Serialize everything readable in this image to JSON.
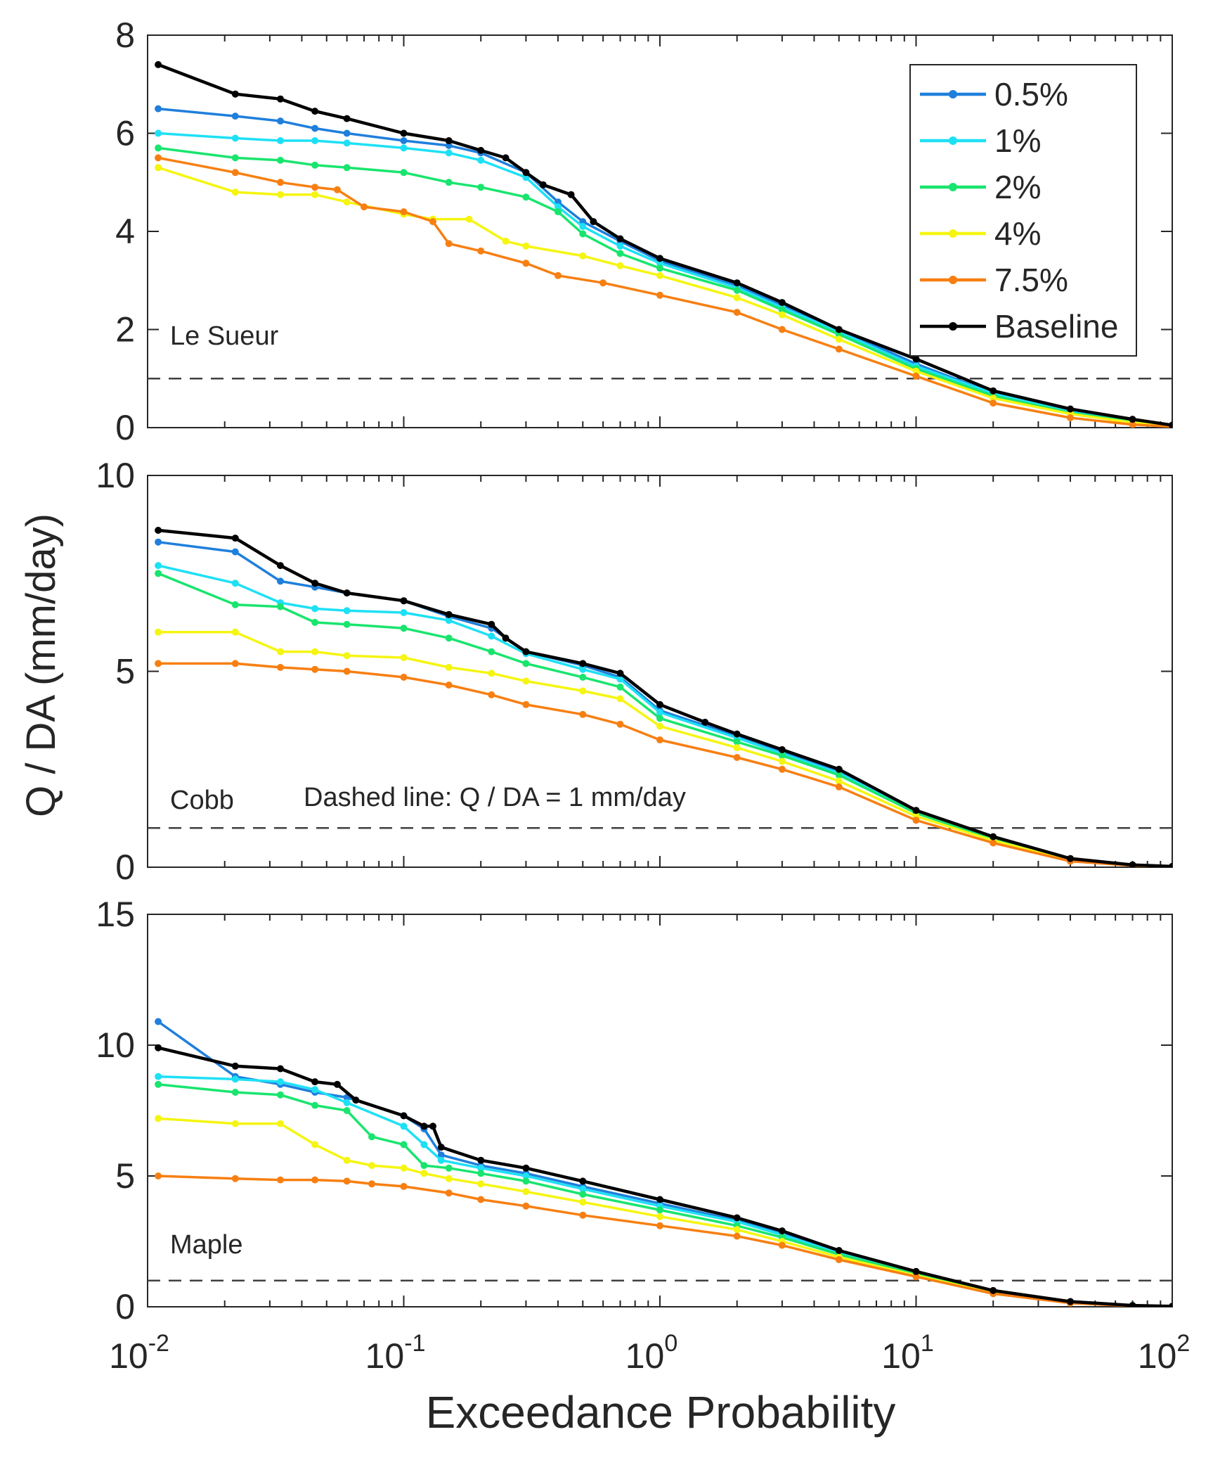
{
  "figure": {
    "ylabel": "Q / DA (mm/day)",
    "xlabel": "Exceedance Probability",
    "note": "Dashed line: Q / DA = 1 mm/day",
    "x_ticks": [
      {
        "value": 0.01,
        "base": "10",
        "exp": "-2"
      },
      {
        "value": 0.1,
        "base": "10",
        "exp": "-1"
      },
      {
        "value": 1,
        "base": "10",
        "exp": "0"
      },
      {
        "value": 10,
        "base": "10",
        "exp": "1"
      },
      {
        "value": 100,
        "base": "10",
        "exp": "2"
      }
    ],
    "legend": {
      "placement": "top-right (top panel)",
      "entries": [
        {
          "label": "0.5%",
          "color": "#1f7fdc"
        },
        {
          "label": "1%",
          "color": "#1ee0f5"
        },
        {
          "label": "2%",
          "color": "#19e56e"
        },
        {
          "label": "4%",
          "color": "#f5f511"
        },
        {
          "label": "7.5%",
          "color": "#f77f12"
        },
        {
          "label": "Baseline",
          "color": "#000000"
        }
      ]
    }
  },
  "chart_data": [
    {
      "type": "line",
      "panel_label": "Le Sueur",
      "x_scale": "log",
      "xlim": [
        0.01,
        100
      ],
      "ylim": [
        0,
        8
      ],
      "yticks": [
        0,
        2,
        4,
        6,
        8
      ],
      "reference_line_y": 1,
      "series": [
        {
          "name": "0.5%",
          "x": [
            0.011,
            0.022,
            0.033,
            0.045,
            0.06,
            0.1,
            0.15,
            0.2,
            0.3,
            0.4,
            0.5,
            0.7,
            1,
            2,
            3,
            5,
            10,
            20,
            40,
            70,
            100
          ],
          "y": [
            6.5,
            6.35,
            6.25,
            6.1,
            6.0,
            5.85,
            5.75,
            5.6,
            5.2,
            4.6,
            4.2,
            3.8,
            3.4,
            2.9,
            2.5,
            2.0,
            1.3,
            0.7,
            0.35,
            0.15,
            0.05
          ]
        },
        {
          "name": "1%",
          "x": [
            0.011,
            0.022,
            0.033,
            0.045,
            0.06,
            0.1,
            0.15,
            0.2,
            0.3,
            0.4,
            0.5,
            0.7,
            1,
            2,
            3,
            5,
            10,
            20,
            40,
            70,
            100
          ],
          "y": [
            6.0,
            5.9,
            5.85,
            5.85,
            5.8,
            5.7,
            5.6,
            5.45,
            5.1,
            4.5,
            4.1,
            3.7,
            3.35,
            2.85,
            2.45,
            1.95,
            1.25,
            0.7,
            0.35,
            0.15,
            0.05
          ]
        },
        {
          "name": "2%",
          "x": [
            0.011,
            0.022,
            0.033,
            0.045,
            0.06,
            0.1,
            0.15,
            0.2,
            0.3,
            0.4,
            0.5,
            0.7,
            1,
            2,
            3,
            5,
            10,
            20,
            40,
            70,
            100
          ],
          "y": [
            5.7,
            5.5,
            5.45,
            5.35,
            5.3,
            5.2,
            5.0,
            4.9,
            4.7,
            4.4,
            3.95,
            3.55,
            3.25,
            2.8,
            2.4,
            1.9,
            1.2,
            0.65,
            0.3,
            0.12,
            0.04
          ]
        },
        {
          "name": "4%",
          "x": [
            0.011,
            0.022,
            0.033,
            0.045,
            0.06,
            0.1,
            0.13,
            0.18,
            0.25,
            0.3,
            0.5,
            0.7,
            1,
            2,
            3,
            5,
            10,
            20,
            40,
            70,
            100
          ],
          "y": [
            5.3,
            4.8,
            4.75,
            4.75,
            4.6,
            4.35,
            4.25,
            4.25,
            3.8,
            3.7,
            3.5,
            3.3,
            3.1,
            2.65,
            2.3,
            1.8,
            1.15,
            0.6,
            0.28,
            0.1,
            0.03
          ]
        },
        {
          "name": "7.5%",
          "x": [
            0.011,
            0.022,
            0.033,
            0.045,
            0.055,
            0.07,
            0.1,
            0.13,
            0.15,
            0.2,
            0.3,
            0.4,
            0.6,
            1,
            2,
            3,
            5,
            10,
            20,
            40,
            70,
            100
          ],
          "y": [
            5.5,
            5.2,
            5.0,
            4.9,
            4.85,
            4.5,
            4.4,
            4.2,
            3.75,
            3.6,
            3.35,
            3.1,
            2.95,
            2.7,
            2.35,
            2.0,
            1.6,
            1.05,
            0.5,
            0.2,
            0.06,
            0.02
          ]
        },
        {
          "name": "Baseline",
          "x": [
            0.011,
            0.022,
            0.033,
            0.045,
            0.06,
            0.1,
            0.15,
            0.2,
            0.25,
            0.3,
            0.35,
            0.45,
            0.55,
            0.7,
            1,
            2,
            3,
            5,
            10,
            20,
            40,
            70,
            100
          ],
          "y": [
            7.4,
            6.8,
            6.7,
            6.45,
            6.3,
            6.0,
            5.85,
            5.65,
            5.5,
            5.2,
            4.95,
            4.75,
            4.2,
            3.85,
            3.45,
            2.95,
            2.55,
            2.0,
            1.4,
            0.75,
            0.38,
            0.17,
            0.05
          ]
        }
      ]
    },
    {
      "type": "line",
      "panel_label": "Cobb",
      "x_scale": "log",
      "xlim": [
        0.01,
        100
      ],
      "ylim": [
        0,
        10
      ],
      "yticks": [
        0,
        5,
        10
      ],
      "reference_line_y": 1,
      "series": [
        {
          "name": "0.5%",
          "x": [
            0.011,
            0.022,
            0.033,
            0.045,
            0.06,
            0.1,
            0.15,
            0.22,
            0.3,
            0.5,
            0.7,
            1,
            2,
            3,
            5,
            10,
            20,
            40,
            70,
            100
          ],
          "y": [
            8.3,
            8.05,
            7.3,
            7.15,
            7.0,
            6.8,
            6.4,
            6.1,
            5.5,
            5.15,
            4.85,
            4.0,
            3.35,
            2.95,
            2.45,
            1.45,
            0.75,
            0.2,
            0.06,
            0.02
          ]
        },
        {
          "name": "1%",
          "x": [
            0.011,
            0.022,
            0.033,
            0.045,
            0.06,
            0.1,
            0.15,
            0.22,
            0.3,
            0.5,
            0.7,
            1,
            2,
            3,
            5,
            10,
            20,
            40,
            70,
            100
          ],
          "y": [
            7.7,
            7.25,
            6.75,
            6.6,
            6.55,
            6.5,
            6.3,
            5.9,
            5.45,
            5.05,
            4.8,
            3.95,
            3.3,
            2.9,
            2.4,
            1.4,
            0.75,
            0.2,
            0.06,
            0.02
          ]
        },
        {
          "name": "2%",
          "x": [
            0.011,
            0.022,
            0.033,
            0.045,
            0.06,
            0.1,
            0.15,
            0.22,
            0.3,
            0.5,
            0.7,
            1,
            2,
            3,
            5,
            10,
            20,
            40,
            70,
            100
          ],
          "y": [
            7.5,
            6.7,
            6.65,
            6.25,
            6.2,
            6.1,
            5.85,
            5.5,
            5.2,
            4.85,
            4.6,
            3.8,
            3.2,
            2.85,
            2.35,
            1.38,
            0.72,
            0.19,
            0.05,
            0.02
          ]
        },
        {
          "name": "4%",
          "x": [
            0.011,
            0.022,
            0.033,
            0.045,
            0.06,
            0.1,
            0.15,
            0.22,
            0.3,
            0.5,
            0.7,
            1,
            2,
            3,
            5,
            10,
            20,
            40,
            70,
            100
          ],
          "y": [
            6.0,
            6.0,
            5.5,
            5.5,
            5.4,
            5.35,
            5.1,
            4.95,
            4.75,
            4.5,
            4.3,
            3.6,
            3.05,
            2.7,
            2.2,
            1.3,
            0.68,
            0.17,
            0.05,
            0.01
          ]
        },
        {
          "name": "7.5%",
          "x": [
            0.011,
            0.022,
            0.033,
            0.045,
            0.06,
            0.1,
            0.15,
            0.22,
            0.3,
            0.5,
            0.7,
            1,
            2,
            3,
            5,
            10,
            20,
            40,
            70,
            100
          ],
          "y": [
            5.2,
            5.2,
            5.1,
            5.05,
            5.0,
            4.85,
            4.65,
            4.4,
            4.15,
            3.9,
            3.65,
            3.25,
            2.8,
            2.5,
            2.05,
            1.2,
            0.62,
            0.15,
            0.04,
            0.01
          ]
        },
        {
          "name": "Baseline",
          "x": [
            0.011,
            0.022,
            0.033,
            0.045,
            0.06,
            0.1,
            0.15,
            0.22,
            0.25,
            0.3,
            0.5,
            0.7,
            1,
            1.5,
            2,
            3,
            5,
            10,
            20,
            40,
            70,
            100
          ],
          "y": [
            8.6,
            8.4,
            7.7,
            7.25,
            7.0,
            6.8,
            6.45,
            6.2,
            5.85,
            5.5,
            5.2,
            4.95,
            4.15,
            3.7,
            3.4,
            3.0,
            2.5,
            1.45,
            0.78,
            0.22,
            0.06,
            0.02
          ]
        }
      ]
    },
    {
      "type": "line",
      "panel_label": "Maple",
      "x_scale": "log",
      "xlim": [
        0.01,
        100
      ],
      "ylim": [
        0,
        15
      ],
      "yticks": [
        0,
        5,
        10,
        15
      ],
      "reference_line_y": 1,
      "series": [
        {
          "name": "0.5%",
          "x": [
            0.011,
            0.022,
            0.033,
            0.045,
            0.06,
            0.1,
            0.12,
            0.14,
            0.2,
            0.3,
            0.5,
            1,
            2,
            3,
            5,
            10,
            20,
            40,
            70,
            100
          ],
          "y": [
            10.9,
            8.8,
            8.5,
            8.2,
            8.0,
            7.3,
            6.8,
            5.8,
            5.4,
            5.1,
            4.6,
            3.95,
            3.3,
            2.8,
            2.1,
            1.3,
            0.6,
            0.2,
            0.05,
            0.02
          ]
        },
        {
          "name": "1%",
          "x": [
            0.011,
            0.022,
            0.033,
            0.045,
            0.06,
            0.1,
            0.12,
            0.14,
            0.2,
            0.3,
            0.5,
            1,
            2,
            3,
            5,
            10,
            20,
            40,
            70,
            100
          ],
          "y": [
            8.8,
            8.7,
            8.6,
            8.3,
            7.8,
            6.9,
            6.2,
            5.6,
            5.3,
            5.0,
            4.5,
            3.85,
            3.25,
            2.75,
            2.05,
            1.28,
            0.58,
            0.18,
            0.05,
            0.02
          ]
        },
        {
          "name": "2%",
          "x": [
            0.011,
            0.022,
            0.033,
            0.045,
            0.06,
            0.075,
            0.1,
            0.12,
            0.15,
            0.2,
            0.3,
            0.5,
            1,
            2,
            3,
            5,
            10,
            20,
            40,
            70,
            100
          ],
          "y": [
            8.5,
            8.2,
            8.1,
            7.7,
            7.5,
            6.5,
            6.2,
            5.4,
            5.3,
            5.1,
            4.8,
            4.3,
            3.7,
            3.1,
            2.65,
            2.0,
            1.25,
            0.55,
            0.17,
            0.04,
            0.01
          ]
        },
        {
          "name": "4%",
          "x": [
            0.011,
            0.022,
            0.033,
            0.045,
            0.06,
            0.075,
            0.1,
            0.12,
            0.15,
            0.2,
            0.3,
            0.5,
            1,
            2,
            3,
            5,
            10,
            20,
            40,
            70,
            100
          ],
          "y": [
            7.2,
            7.0,
            7.0,
            6.2,
            5.6,
            5.4,
            5.3,
            5.1,
            4.9,
            4.7,
            4.4,
            4.0,
            3.45,
            2.95,
            2.5,
            1.9,
            1.2,
            0.52,
            0.15,
            0.04,
            0.01
          ]
        },
        {
          "name": "7.5%",
          "x": [
            0.011,
            0.022,
            0.033,
            0.045,
            0.06,
            0.075,
            0.1,
            0.15,
            0.2,
            0.3,
            0.5,
            1,
            2,
            3,
            5,
            10,
            20,
            40,
            70,
            100
          ],
          "y": [
            5.0,
            4.9,
            4.85,
            4.85,
            4.8,
            4.7,
            4.6,
            4.35,
            4.1,
            3.85,
            3.5,
            3.1,
            2.7,
            2.35,
            1.8,
            1.15,
            0.5,
            0.14,
            0.03,
            0.01
          ]
        },
        {
          "name": "Baseline",
          "x": [
            0.011,
            0.022,
            0.033,
            0.045,
            0.055,
            0.065,
            0.1,
            0.12,
            0.13,
            0.14,
            0.2,
            0.3,
            0.5,
            1,
            2,
            3,
            5,
            10,
            20,
            40,
            70,
            100
          ],
          "y": [
            9.9,
            9.2,
            9.1,
            8.6,
            8.5,
            7.9,
            7.3,
            6.9,
            6.9,
            6.1,
            5.6,
            5.3,
            4.8,
            4.1,
            3.4,
            2.9,
            2.15,
            1.35,
            0.62,
            0.2,
            0.05,
            0.02
          ]
        }
      ]
    }
  ]
}
